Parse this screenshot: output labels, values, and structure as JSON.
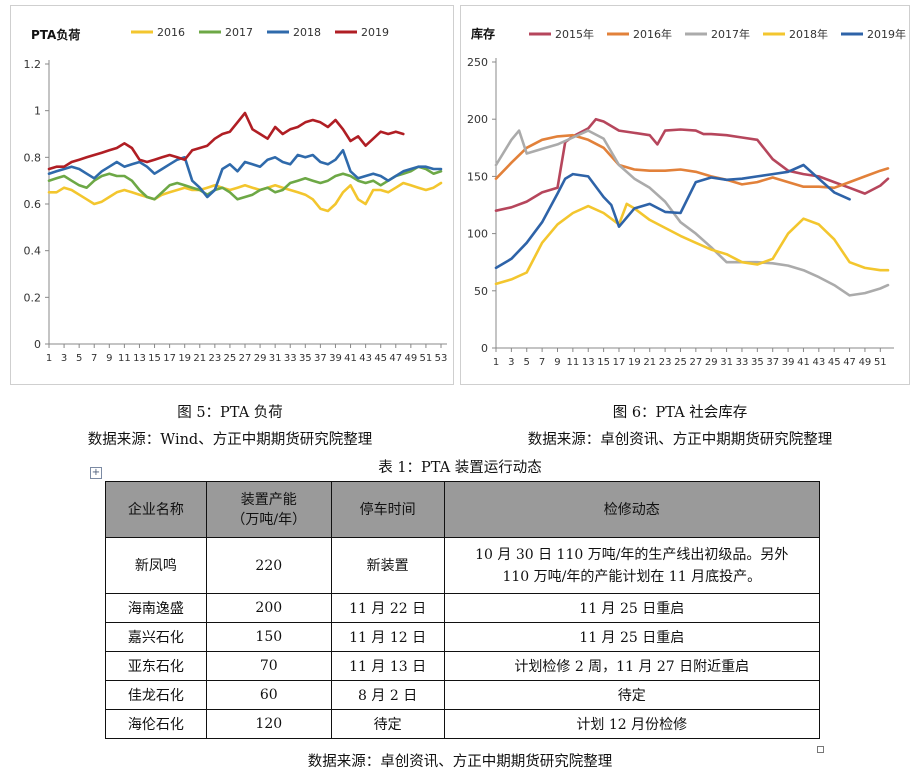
{
  "charts": {
    "pta_load": {
      "ylabel": "PTA负荷",
      "yticks": [
        "0",
        "0.2",
        "0.4",
        "0.6",
        "0.8",
        "1",
        "1.2"
      ],
      "xticks": [
        "1",
        "3",
        "5",
        "7",
        "9",
        "11",
        "13",
        "15",
        "17",
        "19",
        "21",
        "23",
        "25",
        "27",
        "29",
        "31",
        "33",
        "35",
        "37",
        "39",
        "41",
        "43",
        "45",
        "47",
        "49",
        "51",
        "53"
      ],
      "legend": [
        "2016",
        "2017",
        "2018",
        "2019"
      ],
      "colors": [
        "#f3c62e",
        "#6da846",
        "#2f6aab",
        "#b01e24"
      ]
    },
    "pta_inventory": {
      "ylabel": "库存",
      "yticks": [
        "0",
        "50",
        "100",
        "150",
        "200",
        "250"
      ],
      "xticks": [
        "1",
        "3",
        "5",
        "7",
        "9",
        "11",
        "13",
        "15",
        "17",
        "19",
        "21",
        "23",
        "25",
        "27",
        "29",
        "31",
        "33",
        "35",
        "37",
        "39",
        "41",
        "43",
        "45",
        "47",
        "49",
        "51"
      ],
      "legend": [
        "2015年",
        "2016年",
        "2017年",
        "2018年",
        "2019年"
      ],
      "colors": [
        "#b6465c",
        "#e2813a",
        "#ababab",
        "#f3c62e",
        "#2e63a8"
      ]
    }
  },
  "chart_data": [
    {
      "type": "line",
      "ylabel": "PTA负荷",
      "ylim": [
        0,
        1.2
      ],
      "x_range": [
        1,
        53
      ],
      "grid": false,
      "legend_position": "top",
      "series": [
        {
          "name": "2016",
          "x": [
            1,
            2,
            3,
            4,
            5,
            6,
            7,
            8,
            9,
            10,
            11,
            12,
            13,
            14,
            15,
            16,
            17,
            18,
            19,
            20,
            21,
            22,
            23,
            24,
            25,
            26,
            27,
            28,
            29,
            30,
            31,
            32,
            33,
            34,
            35,
            36,
            37,
            38,
            39,
            40,
            41,
            42,
            43,
            44,
            45,
            46,
            47,
            48,
            49,
            50,
            51,
            52,
            53
          ],
          "values": [
            0.65,
            0.65,
            0.67,
            0.66,
            0.64,
            0.62,
            0.6,
            0.61,
            0.63,
            0.65,
            0.66,
            0.65,
            0.64,
            0.63,
            0.62,
            0.64,
            0.65,
            0.66,
            0.67,
            0.66,
            0.66,
            0.67,
            0.68,
            0.67,
            0.66,
            0.67,
            0.68,
            0.67,
            0.66,
            0.67,
            0.68,
            0.67,
            0.66,
            0.65,
            0.64,
            0.62,
            0.58,
            0.57,
            0.6,
            0.65,
            0.68,
            0.62,
            0.6,
            0.66,
            0.66,
            0.65,
            0.67,
            0.69,
            0.68,
            0.67,
            0.66,
            0.67,
            0.69
          ]
        },
        {
          "name": "2017",
          "x": [
            1,
            2,
            3,
            4,
            5,
            6,
            7,
            8,
            9,
            10,
            11,
            12,
            13,
            14,
            15,
            16,
            17,
            18,
            19,
            20,
            21,
            22,
            23,
            24,
            25,
            26,
            27,
            28,
            29,
            30,
            31,
            32,
            33,
            34,
            35,
            36,
            37,
            38,
            39,
            40,
            41,
            42,
            43,
            44,
            45,
            46,
            47,
            48,
            49,
            50,
            51,
            52,
            53
          ],
          "values": [
            0.7,
            0.71,
            0.72,
            0.7,
            0.68,
            0.67,
            0.7,
            0.72,
            0.73,
            0.72,
            0.72,
            0.7,
            0.66,
            0.63,
            0.62,
            0.65,
            0.68,
            0.69,
            0.68,
            0.67,
            0.66,
            0.64,
            0.66,
            0.67,
            0.65,
            0.62,
            0.63,
            0.64,
            0.66,
            0.67,
            0.65,
            0.66,
            0.69,
            0.7,
            0.71,
            0.7,
            0.69,
            0.7,
            0.72,
            0.73,
            0.72,
            0.7,
            0.69,
            0.7,
            0.68,
            0.7,
            0.72,
            0.73,
            0.74,
            0.76,
            0.75,
            0.73,
            0.74
          ]
        },
        {
          "name": "2018",
          "x": [
            1,
            2,
            3,
            4,
            5,
            6,
            7,
            8,
            9,
            10,
            11,
            12,
            13,
            14,
            15,
            16,
            17,
            18,
            19,
            20,
            21,
            22,
            23,
            24,
            25,
            26,
            27,
            28,
            29,
            30,
            31,
            32,
            33,
            34,
            35,
            36,
            37,
            38,
            39,
            40,
            41,
            42,
            43,
            44,
            45,
            46,
            47,
            48,
            49,
            50,
            51,
            52,
            53
          ],
          "values": [
            0.73,
            0.74,
            0.75,
            0.76,
            0.75,
            0.73,
            0.71,
            0.74,
            0.76,
            0.78,
            0.76,
            0.77,
            0.78,
            0.76,
            0.73,
            0.75,
            0.77,
            0.79,
            0.8,
            0.7,
            0.67,
            0.63,
            0.66,
            0.75,
            0.77,
            0.74,
            0.78,
            0.77,
            0.76,
            0.79,
            0.8,
            0.78,
            0.77,
            0.81,
            0.8,
            0.81,
            0.78,
            0.77,
            0.79,
            0.83,
            0.74,
            0.71,
            0.72,
            0.73,
            0.72,
            0.7,
            0.72,
            0.74,
            0.75,
            0.76,
            0.76,
            0.75,
            0.75
          ]
        },
        {
          "name": "2019",
          "x": [
            1,
            2,
            3,
            4,
            5,
            6,
            7,
            8,
            9,
            10,
            11,
            12,
            13,
            14,
            15,
            16,
            17,
            18,
            19,
            20,
            21,
            22,
            23,
            24,
            25,
            26,
            27,
            28,
            29,
            30,
            31,
            32,
            33,
            34,
            35,
            36,
            37,
            38,
            39,
            40,
            41,
            42,
            43,
            44,
            45,
            46,
            47,
            48
          ],
          "values": [
            0.75,
            0.76,
            0.76,
            0.78,
            0.79,
            0.8,
            0.81,
            0.82,
            0.83,
            0.84,
            0.86,
            0.84,
            0.79,
            0.78,
            0.79,
            0.8,
            0.81,
            0.8,
            0.79,
            0.83,
            0.84,
            0.85,
            0.88,
            0.9,
            0.91,
            0.95,
            0.99,
            0.92,
            0.9,
            0.88,
            0.93,
            0.9,
            0.92,
            0.93,
            0.95,
            0.96,
            0.95,
            0.93,
            0.96,
            0.92,
            0.87,
            0.89,
            0.85,
            0.88,
            0.91,
            0.9,
            0.91,
            0.9
          ]
        }
      ]
    },
    {
      "type": "line",
      "ylabel": "库存",
      "ylim": [
        0,
        250
      ],
      "x_range": [
        1,
        52
      ],
      "grid": false,
      "legend_position": "top",
      "series": [
        {
          "name": "2015年",
          "x": [
            1,
            3,
            5,
            7,
            9,
            10,
            11,
            13,
            14,
            15,
            17,
            19,
            21,
            22,
            23,
            25,
            27,
            28,
            29,
            31,
            33,
            35,
            37,
            39,
            41,
            43,
            45,
            47,
            49,
            51,
            52
          ],
          "values": [
            120,
            123,
            128,
            136,
            140,
            180,
            185,
            192,
            200,
            198,
            190,
            188,
            186,
            178,
            190,
            191,
            190,
            187,
            187,
            186,
            184,
            182,
            165,
            155,
            152,
            150,
            145,
            140,
            135,
            142,
            148
          ]
        },
        {
          "name": "2016年",
          "x": [
            1,
            3,
            5,
            7,
            9,
            11,
            13,
            15,
            17,
            19,
            21,
            23,
            25,
            27,
            29,
            31,
            33,
            35,
            37,
            39,
            41,
            43,
            45,
            47,
            49,
            51,
            52
          ],
          "values": [
            148,
            162,
            175,
            182,
            185,
            186,
            182,
            175,
            160,
            156,
            155,
            155,
            156,
            154,
            150,
            147,
            143,
            145,
            149,
            145,
            141,
            141,
            140,
            145,
            150,
            155,
            157
          ]
        },
        {
          "name": "2017年",
          "x": [
            1,
            3,
            4,
            5,
            7,
            9,
            11,
            13,
            15,
            17,
            19,
            21,
            23,
            25,
            27,
            29,
            31,
            33,
            35,
            37,
            39,
            41,
            43,
            45,
            47,
            49,
            51,
            52
          ],
          "values": [
            160,
            182,
            190,
            170,
            174,
            178,
            184,
            190,
            183,
            160,
            148,
            140,
            128,
            110,
            100,
            88,
            75,
            75,
            75,
            74,
            72,
            68,
            62,
            55,
            46,
            48,
            52,
            55
          ]
        },
        {
          "name": "2018年",
          "x": [
            1,
            3,
            5,
            7,
            9,
            11,
            13,
            15,
            17,
            18,
            19,
            21,
            23,
            25,
            27,
            29,
            31,
            33,
            35,
            37,
            39,
            41,
            43,
            45,
            47,
            49,
            51,
            52
          ],
          "values": [
            56,
            60,
            66,
            92,
            108,
            118,
            124,
            118,
            108,
            126,
            122,
            112,
            105,
            98,
            92,
            86,
            82,
            75,
            73,
            78,
            100,
            113,
            108,
            95,
            75,
            70,
            68,
            68
          ]
        },
        {
          "name": "2019年",
          "x": [
            1,
            3,
            5,
            7,
            9,
            10,
            11,
            13,
            15,
            16,
            17,
            19,
            21,
            23,
            25,
            27,
            29,
            31,
            33,
            35,
            37,
            39,
            41,
            43,
            45,
            47
          ],
          "values": [
            70,
            78,
            92,
            110,
            135,
            148,
            152,
            150,
            132,
            125,
            106,
            122,
            126,
            119,
            118,
            145,
            149,
            147,
            148,
            150,
            152,
            154,
            160,
            148,
            136,
            130
          ]
        }
      ]
    }
  ],
  "captions": {
    "fig5_title": "图 5：PTA 负荷",
    "fig5_source": "数据来源：Wind、方正中期期货研究院整理",
    "fig6_title": "图 6：PTA 社会库存",
    "fig6_source": "数据来源：卓创资讯、方正中期期货研究院整理",
    "table_title": "表 1：PTA 装置运行动态",
    "table_source": "数据来源：卓创资讯、方正中期期货研究院整理"
  },
  "table": {
    "headers": [
      "企业名称",
      "装置产能\n（万吨/年）",
      "停车时间",
      "检修动态"
    ],
    "rows": [
      {
        "company": "新凤鸣",
        "capacity": "220",
        "stop": "新装置",
        "status": "10 月 30 日 110 万吨/年的生产线出初级品。另外\n110 万吨/年的产能计划在 11 月底投产。"
      },
      {
        "company": "海南逸盛",
        "capacity": "200",
        "stop": "11 月 22 日",
        "status": "11 月 25 日重启"
      },
      {
        "company": "嘉兴石化",
        "capacity": "150",
        "stop": "11 月 12 日",
        "status": "11 月 25 日重启"
      },
      {
        "company": "亚东石化",
        "capacity": "70",
        "stop": "11 月 13 日",
        "status": "计划检修 2 周，11 月 27 日附近重启"
      },
      {
        "company": "佳龙石化",
        "capacity": "60",
        "stop": "8 月 2 日",
        "status": "待定"
      },
      {
        "company": "海伦石化",
        "capacity": "120",
        "stop": "待定",
        "status": "计划 12 月份检修"
      }
    ]
  }
}
